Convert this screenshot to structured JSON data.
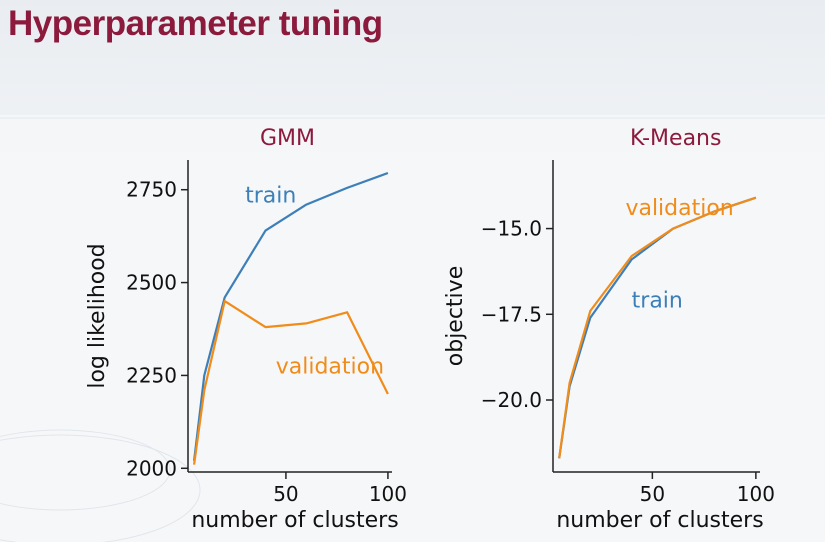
{
  "slide": {
    "title": "Hyperparameter tuning",
    "title_color": "#8c1a3c"
  },
  "colors": {
    "train": "#3d7fb8",
    "validation": "#f08c1a",
    "axis": "#222222"
  },
  "chart_data": [
    {
      "type": "line",
      "title": "GMM",
      "xlabel": "number of clusters",
      "ylabel": "log likelihood",
      "xlim": [
        2,
        102
      ],
      "ylim": [
        1990,
        2830
      ],
      "xticks": [
        50,
        100
      ],
      "yticks": [
        2000,
        2250,
        2500,
        2750
      ],
      "ytick_labels": [
        "2000",
        "2250",
        "2500",
        "2750"
      ],
      "grid": false,
      "series": [
        {
          "name": "train",
          "color": "#3d7fb8",
          "points": [
            [
              5,
              2020
            ],
            [
              10,
              2250
            ],
            [
              20,
              2460
            ],
            [
              40,
              2640
            ],
            [
              60,
              2710
            ],
            [
              80,
              2755
            ],
            [
              100,
              2795
            ]
          ]
        },
        {
          "name": "validation",
          "color": "#f08c1a",
          "points": [
            [
              5,
              2010
            ],
            [
              10,
              2210
            ],
            [
              20,
              2450
            ],
            [
              40,
              2380
            ],
            [
              60,
              2390
            ],
            [
              80,
              2420
            ],
            [
              100,
              2200
            ]
          ]
        }
      ],
      "annotations": [
        {
          "text": "train",
          "series": "train",
          "x": 30,
          "y": 2715
        },
        {
          "text": "validation",
          "series": "validation",
          "x": 45,
          "y": 2255
        }
      ]
    },
    {
      "type": "line",
      "title": "K-Means",
      "xlabel": "number of clusters",
      "ylabel": "objective",
      "xlim": [
        2,
        102
      ],
      "ylim": [
        -22.1,
        -13.0
      ],
      "xticks": [
        50,
        100
      ],
      "yticks": [
        -20.0,
        -17.5,
        -15.0
      ],
      "ytick_labels": [
        "−20.0",
        "−17.5",
        "−15.0"
      ],
      "grid": false,
      "series": [
        {
          "name": "train",
          "color": "#3d7fb8",
          "points": [
            [
              5,
              -21.7
            ],
            [
              10,
              -19.6
            ],
            [
              20,
              -17.6
            ],
            [
              40,
              -15.9
            ],
            [
              60,
              -15.0
            ],
            [
              80,
              -14.5
            ],
            [
              100,
              -14.1
            ]
          ]
        },
        {
          "name": "validation",
          "color": "#f08c1a",
          "points": [
            [
              5,
              -21.7
            ],
            [
              10,
              -19.5
            ],
            [
              20,
              -17.4
            ],
            [
              40,
              -15.8
            ],
            [
              60,
              -15.0
            ],
            [
              80,
              -14.5
            ],
            [
              100,
              -14.1
            ]
          ]
        }
      ],
      "annotations": [
        {
          "text": "validation",
          "series": "validation",
          "x": 37,
          "y": -14.6
        },
        {
          "text": "train",
          "series": "train",
          "x": 40,
          "y": -17.3
        }
      ]
    }
  ]
}
